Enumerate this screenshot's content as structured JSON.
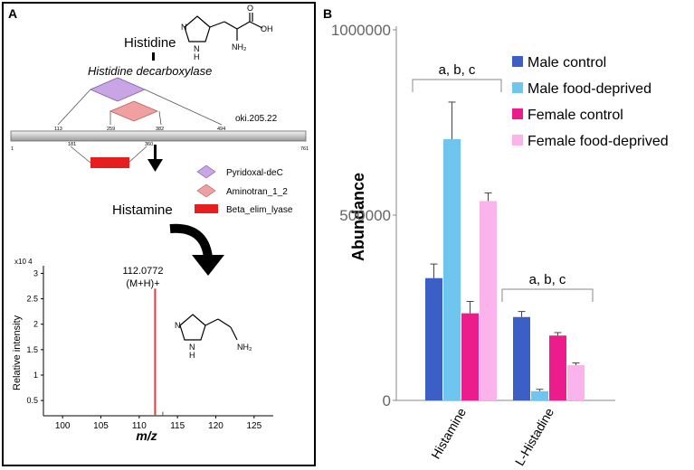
{
  "panel_a": {
    "label": "A",
    "histidine_label": "Histidine",
    "enzyme_label": "Histidine decarboxylase",
    "gene_id": "oki.205.22",
    "domain_ticks": [
      "113",
      "259",
      "382",
      "494",
      "181",
      "360",
      "1",
      "761"
    ],
    "histamine_label": "Histamine",
    "legend": [
      {
        "name": "Pyridoxal-deC",
        "color": "#c9a5e6"
      },
      {
        "name": "Aminotran_1_2",
        "color": "#f0a0a0"
      },
      {
        "name": "Beta_elim_lyase",
        "color": "#e61e1e"
      }
    ],
    "chem": {
      "histidine_nh": "N",
      "histidine_nh_h": "H",
      "histidine_oh": "OH",
      "histidine_o": "O",
      "histidine_nh2": "NH₂",
      "histamine_n": "N",
      "histamine_nh": "N",
      "histamine_h": "H",
      "histamine_nh2": "NH₂"
    },
    "spectrum": {
      "exponent_label": "x10 4",
      "ylabel": "Relative intensity",
      "xlabel": "m/z",
      "y_ticks": [
        "3",
        "2.5",
        "2",
        "1.5",
        "1",
        "0.5"
      ],
      "x_ticks": [
        "100",
        "105",
        "110",
        "115",
        "120",
        "125"
      ],
      "xlim": [
        97.5,
        127.5
      ],
      "ylim": [
        0.2,
        3.15
      ],
      "peak_mz": 112.0772,
      "peak_intensity": 2.7,
      "minor_mz": 113.08,
      "minor_intensity": 0.28,
      "peak_label": "112.0772",
      "peak_ion": "(M+H)+",
      "peak_color": "#e03a3a"
    }
  },
  "chart_data": {
    "panel_label": "B",
    "type": "bar",
    "categories": [
      "Histamine",
      "L-Histadine"
    ],
    "series": [
      {
        "name": "Male control",
        "color": "#3b5fc4",
        "values": [
          330000,
          225000
        ],
        "errors": [
          38000,
          15000
        ]
      },
      {
        "name": "Male food-deprived",
        "color": "#6ec6ee",
        "values": [
          705000,
          25000
        ],
        "errors": [
          100000,
          5000
        ]
      },
      {
        "name": "Female control",
        "color": "#ec1c8c",
        "values": [
          235000,
          175000
        ],
        "errors": [
          32000,
          8000
        ]
      },
      {
        "name": "Female food-deprived",
        "color": "#fbb3ec",
        "values": [
          538000,
          95000
        ],
        "errors": [
          22000,
          6000
        ]
      }
    ],
    "ylabel": "Abundance",
    "xlabel": "",
    "ylim": [
      0,
      1000000
    ],
    "y_ticks": [
      "1000000",
      "500000",
      "0"
    ],
    "y_tick_values": [
      1000000,
      500000,
      0
    ],
    "annotations": [
      "a, b, c",
      "a, b, c"
    ],
    "legend_position": "top-right",
    "grid": false
  }
}
